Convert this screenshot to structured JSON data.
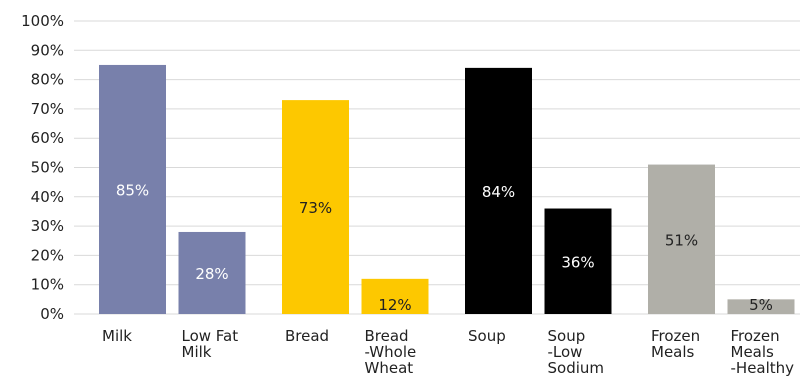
{
  "chart_data": {
    "type": "bar",
    "categories": [
      [
        "Milk"
      ],
      [
        "Low Fat",
        "Milk"
      ],
      [
        "Bread"
      ],
      [
        "Bread",
        "-Whole",
        "Wheat"
      ],
      [
        "Soup"
      ],
      [
        "Soup",
        "-Low",
        "Sodium"
      ],
      [
        "Frozen",
        "Meals"
      ],
      [
        "Frozen",
        "Meals",
        "-Healthy"
      ]
    ],
    "values": [
      85,
      28,
      73,
      12,
      84,
      36,
      51,
      5
    ],
    "data_labels": [
      "85%",
      "28%",
      "73%",
      "12%",
      "84%",
      "36%",
      "51%",
      "5%"
    ],
    "bar_colors": [
      "#7880ab",
      "#7880ab",
      "#fdc800",
      "#fdc800",
      "#000000",
      "#000000",
      "#b0afa8",
      "#b0afa8"
    ],
    "label_colors": [
      "#ffffff",
      "#ffffff",
      "#222222",
      "#222222",
      "#ffffff",
      "#ffffff",
      "#222222",
      "#222222"
    ],
    "ylim": [
      0,
      100
    ],
    "yticks": [
      "0%",
      "10%",
      "20%",
      "30%",
      "40%",
      "50%",
      "60%",
      "70%",
      "80%",
      "90%",
      "100%"
    ],
    "grid": true,
    "title": "",
    "xlabel": "",
    "ylabel": ""
  }
}
